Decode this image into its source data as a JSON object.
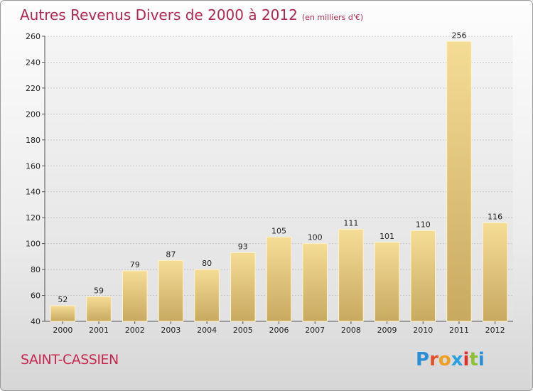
{
  "header": {
    "title": "Autres Revenus Divers de 2000 à 2012",
    "subtitle": "(en milliers d'€)"
  },
  "footer": {
    "city": "SAINT-CASSIEN",
    "logo": {
      "letters": [
        "P",
        "r",
        "o",
        "x",
        "i",
        "t",
        "i"
      ],
      "colors": [
        "#2a8fd6",
        "#e0502a",
        "#f0a020",
        "#2aa0e0",
        "#e0302a",
        "#8cc030",
        "#2a8fd6"
      ]
    }
  },
  "chart_data": {
    "type": "bar",
    "categories": [
      "2000",
      "2001",
      "2002",
      "2003",
      "2004",
      "2005",
      "2006",
      "2007",
      "2008",
      "2009",
      "2010",
      "2011",
      "2012"
    ],
    "values": [
      52,
      59,
      79,
      87,
      80,
      93,
      105,
      100,
      111,
      101,
      110,
      256,
      116
    ],
    "data_labels": [
      "52",
      "59",
      "79",
      "87",
      "80",
      "93",
      "105",
      "100",
      "111",
      "101",
      "110",
      "256",
      "116"
    ],
    "title": "Autres Revenus Divers de 2000 à 2012",
    "subtitle": "(en milliers d'€)",
    "xlabel": "",
    "ylabel": "",
    "ylim": [
      40,
      260
    ],
    "yticks": [
      40,
      60,
      80,
      100,
      120,
      140,
      160,
      180,
      200,
      220,
      240,
      260
    ],
    "grid": true,
    "bar_color": "#e8cc82",
    "grid_color": "#c8c8c8"
  }
}
